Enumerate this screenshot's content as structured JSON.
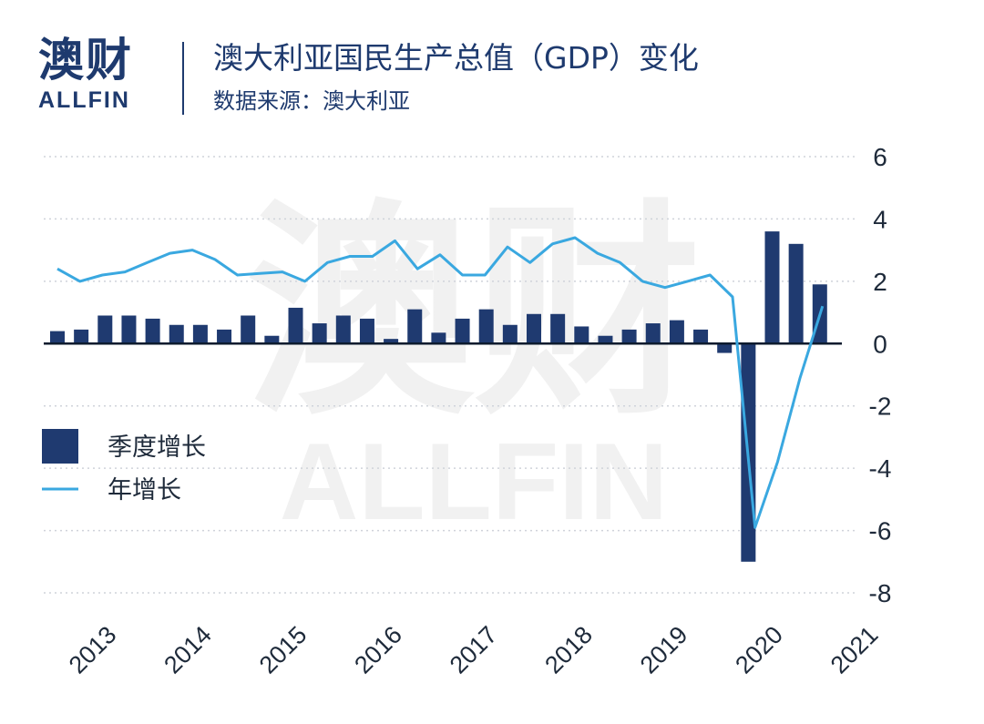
{
  "header": {
    "logo_cn": "澳财",
    "logo_en": "ALLFIN",
    "title": "澳大利亚国民生产总值（GDP）变化",
    "subtitle": "数据来源：澳大利亚"
  },
  "watermark": {
    "cn": "澳财",
    "en": "ALLFIN"
  },
  "colors": {
    "bar": "#1f3a70",
    "line": "#3aa8e0",
    "grid": "#cfd3da",
    "axis": "#0d1b2e",
    "watermark": "#f1f1f1"
  },
  "chart_data": {
    "type": "bar",
    "title": "澳大利亚国民生产总值（GDP）变化",
    "xlabel": "",
    "ylabel": "",
    "ylim": [
      -8,
      6
    ],
    "yticks": [
      "6",
      "4",
      "2",
      "0",
      "-2",
      "-4",
      "-6",
      "-8"
    ],
    "year_labels": [
      "2013",
      "2014",
      "2015",
      "2016",
      "2017",
      "2018",
      "2019",
      "2020",
      "2021"
    ],
    "grid": true,
    "y_axis_position": "right",
    "legend_placement": "left-center",
    "series": [
      {
        "name": "季度增长",
        "type": "bar",
        "values": [
          0.4,
          0.45,
          0.9,
          0.9,
          0.8,
          0.6,
          0.6,
          0.45,
          0.9,
          0.25,
          1.15,
          0.65,
          0.9,
          0.8,
          0.15,
          1.1,
          0.35,
          0.8,
          1.1,
          0.6,
          0.95,
          0.95,
          0.55,
          0.25,
          0.45,
          0.65,
          0.75,
          0.45,
          -0.3,
          -7.0,
          3.6,
          3.2,
          1.9
        ]
      },
      {
        "name": "年增长",
        "type": "line",
        "values": [
          2.4,
          2.0,
          2.2,
          2.3,
          2.6,
          2.9,
          3.0,
          2.7,
          2.2,
          2.25,
          2.3,
          2.0,
          2.6,
          2.8,
          2.8,
          3.3,
          2.4,
          2.85,
          2.2,
          2.2,
          3.1,
          2.6,
          3.2,
          3.4,
          2.9,
          2.6,
          2.0,
          1.8,
          2.0,
          2.2,
          1.5,
          -5.9,
          -3.8,
          -1.1,
          1.2
        ]
      }
    ]
  }
}
